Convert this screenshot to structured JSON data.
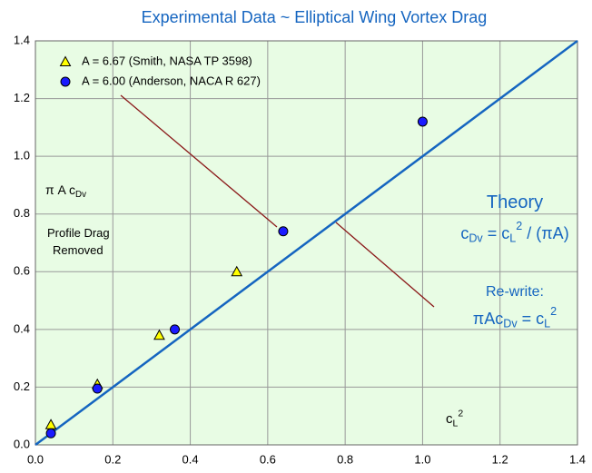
{
  "chart_data": {
    "type": "scatter",
    "title": "Experimental Data ~ Elliptical Wing Vortex Drag",
    "xlim": [
      0,
      1.4
    ],
    "ylim": [
      0,
      1.4
    ],
    "xticks": [
      {
        "value": 0,
        "label": "0.0"
      },
      0.2,
      0.4,
      0.6,
      0.8,
      {
        "value": 1,
        "label": "1.0"
      },
      1.2,
      1.4
    ],
    "yticks": [
      {
        "value": 0,
        "label": "0.0"
      },
      0.2,
      0.4,
      0.6,
      0.8,
      {
        "value": 1,
        "label": "1.0"
      },
      1.2,
      1.4
    ],
    "grid": true,
    "legend": "upper left",
    "series": [
      {
        "name": "A = 6.67 (Smith, NASA TP 3598)",
        "color": "#ffff00",
        "marker": "triangle",
        "x": [
          0.04,
          0.16,
          0.32,
          0.52
        ],
        "values": [
          0.07,
          0.21,
          0.38,
          0.6
        ]
      },
      {
        "name": "A = 6.00 (Anderson, NACA R 627)",
        "color": "#1a1aff",
        "marker": "circle",
        "x": [
          0.04,
          0.16,
          0.36,
          0.64,
          1.0
        ],
        "values": [
          0.04,
          0.195,
          0.4,
          0.74,
          1.12
        ]
      }
    ],
    "lines": [
      {
        "color": "#1565c0",
        "x": [
          0,
          1.4
        ],
        "values": [
          0,
          1.4
        ]
      }
    ],
    "annotations": [
      {
        "color": "#000000",
        "size": 14,
        "parts": [
          {
            "text": "π A c"
          },
          {
            "text": "Dv",
            "pos": "sub"
          }
        ]
      },
      {
        "color": "#000000",
        "size": 13,
        "parts": [
          {
            "text": "Profile Drag"
          }
        ]
      },
      {
        "color": "#000000",
        "size": 13,
        "parts": [
          {
            "text": "Removed"
          }
        ]
      },
      {
        "color": "#1565c0",
        "size": 20,
        "parts": [
          {
            "text": "Theory"
          }
        ]
      },
      {
        "color": "#1565c0",
        "size": 18,
        "parts": [
          {
            "text": "c"
          },
          {
            "text": "Dv",
            "pos": "sub"
          },
          {
            "text": " = c"
          },
          {
            "text": "L",
            "pos": "sub"
          },
          {
            "text": "2",
            "pos": "sup"
          },
          {
            "text": " / (πA)"
          }
        ]
      },
      {
        "color": "#1565c0",
        "size": 16,
        "parts": [
          {
            "text": "Re-write:"
          }
        ]
      },
      {
        "color": "#1565c0",
        "size": 18,
        "parts": [
          {
            "text": "πAc"
          },
          {
            "text": "Dv",
            "pos": "sub"
          },
          {
            "text": " = c"
          },
          {
            "text": "L",
            "pos": "sub"
          },
          {
            "text": "2",
            "pos": "sup"
          }
        ]
      },
      {
        "color": "#000000",
        "size": 15,
        "parts": [
          {
            "text": "c"
          },
          {
            "text": "L",
            "pos": "sub"
          },
          {
            "text": "2",
            "pos": "sup"
          }
        ]
      }
    ]
  }
}
